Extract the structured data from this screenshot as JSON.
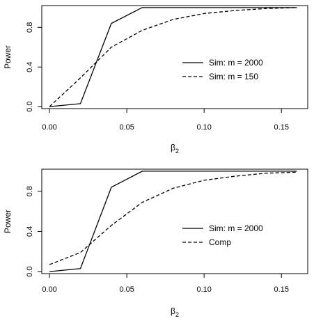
{
  "chart_data": [
    {
      "type": "line",
      "xlabel": "β",
      "xlabel_sub": "2",
      "ylabel": "Power",
      "xlim": [
        -0.005,
        0.167
      ],
      "ylim": [
        -0.02,
        1.02
      ],
      "xticks": [
        0.0,
        0.05,
        0.1,
        0.15
      ],
      "xtick_labels": [
        "0.00",
        "0.05",
        "0.10",
        "0.15"
      ],
      "yticks": [
        0.0,
        0.4,
        0.8
      ],
      "ytick_labels": [
        "0.0",
        "0.4",
        "0.8"
      ],
      "grid": false,
      "legend_position": "right-middle",
      "series": [
        {
          "name": "Sim: m = 2000",
          "line_style": "solid",
          "x": [
            0.0,
            0.02,
            0.04,
            0.06,
            0.08,
            0.1,
            0.12,
            0.14,
            0.16
          ],
          "y": [
            0.0,
            0.03,
            0.84,
            1.0,
            1.0,
            1.0,
            1.0,
            1.0,
            1.0
          ]
        },
        {
          "name": "Sim: m = 150",
          "line_style": "dashed",
          "x": [
            0.0,
            0.02,
            0.04,
            0.06,
            0.08,
            0.1,
            0.12,
            0.14,
            0.16
          ],
          "y": [
            0.0,
            0.29,
            0.6,
            0.77,
            0.88,
            0.94,
            0.97,
            0.99,
            1.0
          ]
        }
      ]
    },
    {
      "type": "line",
      "xlabel": "β",
      "xlabel_sub": "2",
      "ylabel": "Power",
      "xlim": [
        -0.005,
        0.167
      ],
      "ylim": [
        -0.02,
        1.02
      ],
      "xticks": [
        0.0,
        0.05,
        0.1,
        0.15
      ],
      "xtick_labels": [
        "0.00",
        "0.05",
        "0.10",
        "0.15"
      ],
      "yticks": [
        0.0,
        0.4,
        0.8
      ],
      "ytick_labels": [
        "0.0",
        "0.4",
        "0.8"
      ],
      "grid": false,
      "legend_position": "right-middle",
      "series": [
        {
          "name": "Sim: m = 2000",
          "line_style": "solid",
          "x": [
            0.0,
            0.02,
            0.04,
            0.06,
            0.08,
            0.1,
            0.12,
            0.14,
            0.16
          ],
          "y": [
            0.0,
            0.03,
            0.84,
            1.0,
            1.0,
            1.0,
            1.0,
            1.0,
            1.0
          ]
        },
        {
          "name": "Comp",
          "line_style": "dashed",
          "x": [
            0.0,
            0.02,
            0.04,
            0.06,
            0.08,
            0.1,
            0.12,
            0.14,
            0.16
          ],
          "y": [
            0.07,
            0.19,
            0.46,
            0.69,
            0.83,
            0.91,
            0.95,
            0.98,
            0.99
          ]
        }
      ]
    }
  ]
}
